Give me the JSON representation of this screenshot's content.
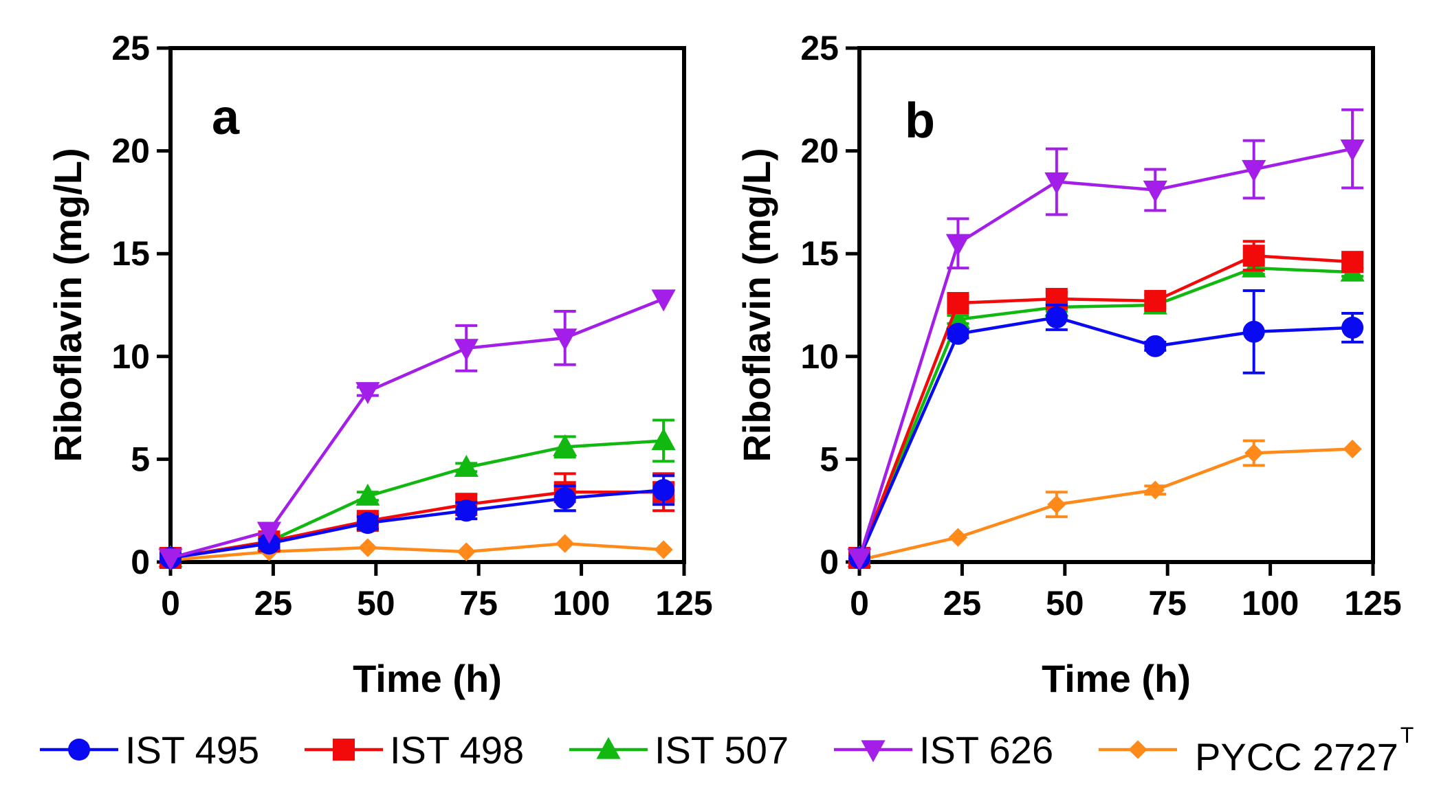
{
  "legend": [
    {
      "name": "IST 495",
      "color": "#0a0af2",
      "marker": "circle"
    },
    {
      "name": "IST 498",
      "color": "#f20a0a",
      "marker": "square"
    },
    {
      "name": "IST 507",
      "color": "#10b810",
      "marker": "triangle-up"
    },
    {
      "name": "IST 626",
      "color": "#a31ee8",
      "marker": "triangle-down"
    },
    {
      "name": "PYCC 2727",
      "superscript": "T",
      "color": "#ff8a1a",
      "marker": "diamond"
    }
  ],
  "chart_data": [
    {
      "type": "line",
      "panel_label": "a",
      "xlabel": "Time (h)",
      "ylabel": "Riboflavin (mg/L)",
      "xlim": [
        0,
        125
      ],
      "ylim": [
        0,
        25
      ],
      "xticks": [
        0,
        25,
        50,
        75,
        100,
        125
      ],
      "yticks": [
        0,
        5,
        10,
        15,
        20,
        25
      ],
      "x": [
        0,
        24,
        48,
        72,
        96,
        120
      ],
      "series": [
        {
          "name": "IST 495",
          "values": [
            0.2,
            0.9,
            1.9,
            2.5,
            3.1,
            3.5
          ],
          "errors": [
            0.2,
            0.2,
            0.3,
            0.4,
            0.6,
            0.7
          ]
        },
        {
          "name": "IST 498",
          "values": [
            0.2,
            1.0,
            2.0,
            2.8,
            3.4,
            3.4
          ],
          "errors": [
            0.2,
            0.2,
            0.3,
            0.5,
            0.9,
            0.9
          ]
        },
        {
          "name": "IST 507",
          "values": [
            0.2,
            1.0,
            3.2,
            4.6,
            5.6,
            5.9
          ],
          "errors": [
            0.1,
            0.1,
            0.2,
            0.2,
            0.5,
            1.0
          ]
        },
        {
          "name": "IST 626",
          "values": [
            0.2,
            1.5,
            8.3,
            10.4,
            10.9,
            12.8
          ],
          "errors": [
            0.1,
            0.1,
            0.2,
            1.1,
            1.3,
            0.1
          ]
        },
        {
          "name": "PYCC 2727",
          "values": [
            0.1,
            0.5,
            0.7,
            0.5,
            0.9,
            0.6
          ],
          "errors": [
            0.1,
            0.1,
            0.1,
            0.1,
            0.1,
            0.1
          ]
        }
      ]
    },
    {
      "type": "line",
      "panel_label": "b",
      "xlabel": "Time (h)",
      "ylabel": "Riboflavin (mg/L)",
      "xlim": [
        0,
        125
      ],
      "ylim": [
        0,
        25
      ],
      "xticks": [
        0,
        25,
        50,
        75,
        100,
        125
      ],
      "yticks": [
        0,
        5,
        10,
        15,
        20,
        25
      ],
      "x": [
        0,
        24,
        48,
        72,
        96,
        120
      ],
      "series": [
        {
          "name": "IST 495",
          "values": [
            0.2,
            11.1,
            11.9,
            10.5,
            11.2,
            11.4
          ],
          "errors": [
            0.1,
            0.2,
            0.6,
            0.2,
            2.0,
            0.7
          ]
        },
        {
          "name": "IST 498",
          "values": [
            0.2,
            12.6,
            12.8,
            12.7,
            14.9,
            14.6
          ],
          "errors": [
            0.1,
            0.3,
            0.3,
            0.3,
            0.7,
            0.3
          ]
        },
        {
          "name": "IST 507",
          "values": [
            0.2,
            11.8,
            12.4,
            12.5,
            14.3,
            14.1
          ],
          "errors": [
            0.1,
            0.2,
            0.2,
            0.2,
            0.3,
            0.2
          ]
        },
        {
          "name": "IST 626",
          "values": [
            0.2,
            15.5,
            18.5,
            18.1,
            19.1,
            20.1
          ],
          "errors": [
            0.1,
            1.2,
            1.6,
            1.0,
            1.4,
            1.9
          ]
        },
        {
          "name": "PYCC 2727",
          "values": [
            0.1,
            1.2,
            2.8,
            3.5,
            5.3,
            5.5
          ],
          "errors": [
            0.1,
            0.1,
            0.6,
            0.2,
            0.6,
            0.1
          ]
        }
      ]
    }
  ]
}
